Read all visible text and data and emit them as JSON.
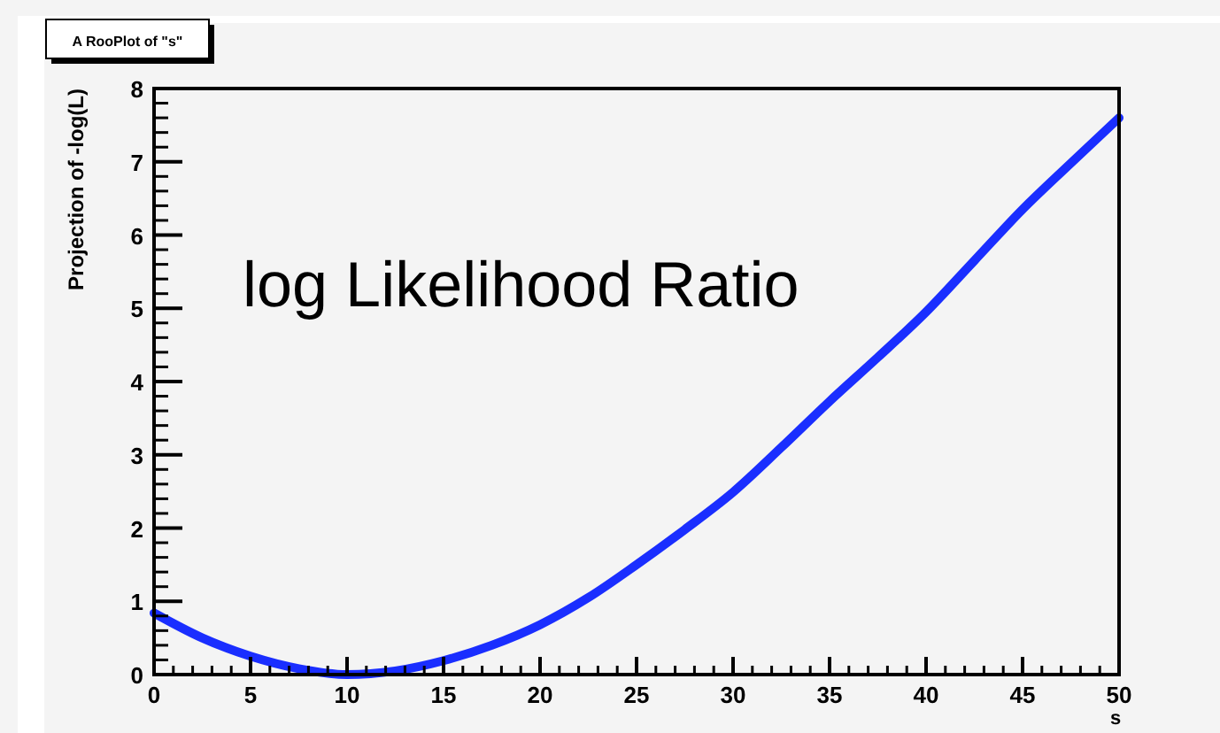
{
  "chart_data": {
    "type": "line",
    "title": "A RooPlot of \"s\"",
    "xlabel": "s",
    "ylabel": "Projection of -log(L)",
    "annotations": [
      "log Likelihood Ratio"
    ],
    "x": [
      0,
      2.5,
      5,
      7.5,
      10,
      12.5,
      15,
      17.5,
      20,
      22.5,
      25,
      27.5,
      30,
      32.5,
      35,
      37.5,
      40,
      42.5,
      45,
      47.5,
      50
    ],
    "series": [
      {
        "color": "#1a2eff",
        "values": [
          0.84,
          0.5,
          0.25,
          0.08,
          0.0,
          0.05,
          0.19,
          0.4,
          0.68,
          1.05,
          1.5,
          1.98,
          2.49,
          3.1,
          3.73,
          4.33,
          4.95,
          5.65,
          6.35,
          6.98,
          7.6
        ]
      }
    ],
    "xlim": [
      0,
      50
    ],
    "ylim": [
      0,
      8
    ],
    "xticks": [
      0,
      5,
      10,
      15,
      20,
      25,
      30,
      35,
      40,
      45,
      50
    ],
    "yticks": [
      0,
      1,
      2,
      3,
      4,
      5,
      6,
      7,
      8
    ],
    "grid": false,
    "marker": "none",
    "line_style": "solid"
  }
}
